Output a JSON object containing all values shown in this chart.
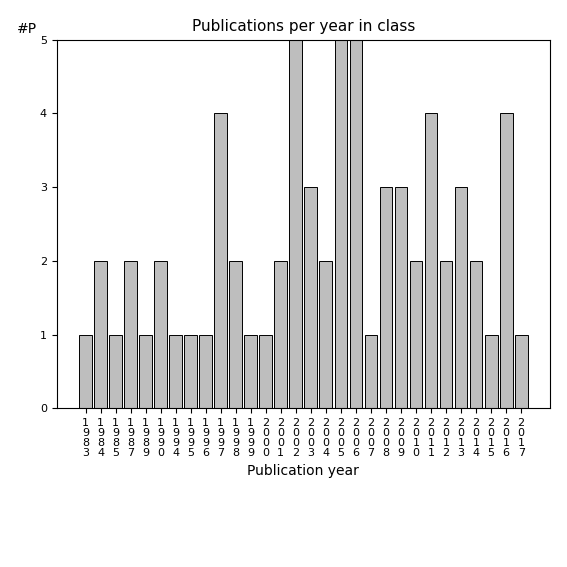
{
  "title": "Publications per year in class",
  "xlabel": "Publication year",
  "ylabel": "#P",
  "categories": [
    "1983",
    "1984",
    "1985",
    "1987",
    "1989",
    "1990",
    "1994",
    "1995",
    "1996",
    "1997",
    "1998",
    "1999",
    "2000",
    "2001",
    "2002",
    "2003",
    "2004",
    "2005",
    "2006",
    "2007",
    "2008",
    "2009",
    "2010",
    "2011",
    "2012",
    "2013",
    "2014",
    "2015",
    "2016",
    "2017"
  ],
  "values": [
    1,
    2,
    1,
    2,
    1,
    2,
    1,
    1,
    1,
    4,
    2,
    1,
    1,
    2,
    5,
    3,
    2,
    5,
    5,
    1,
    3,
    3,
    2,
    4,
    2,
    3,
    2,
    1,
    4,
    1
  ],
  "bar_color": "#bebebe",
  "bar_edge_color": "#000000",
  "ylim": [
    0,
    5
  ],
  "yticks": [
    0,
    1,
    2,
    3,
    4,
    5
  ],
  "title_fontsize": 11,
  "axis_label_fontsize": 10,
  "tick_fontsize": 8,
  "background_color": "#ffffff"
}
